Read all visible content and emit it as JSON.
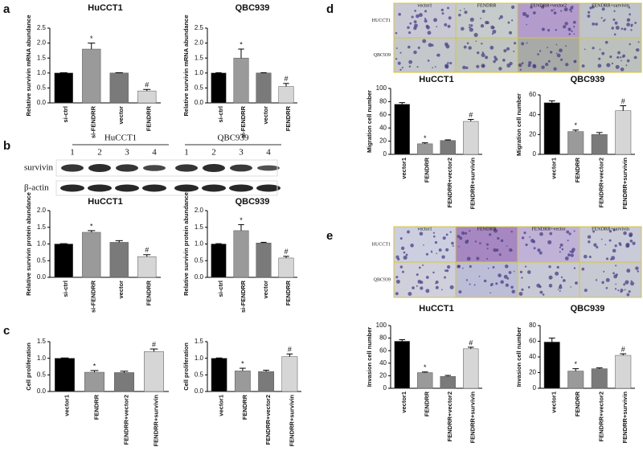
{
  "panel_labels": [
    "a",
    "b",
    "c",
    "d",
    "e"
  ],
  "blot": {
    "groups": [
      "HuCCT1",
      "QBC939"
    ],
    "lanes": [
      "1",
      "2",
      "3",
      "4",
      "1",
      "2",
      "3",
      "4"
    ],
    "rows": [
      "survivin",
      "β-actin"
    ]
  },
  "micrographs_d": {
    "columns": [
      "vector1",
      "FENDRR",
      "FENDRR+vector2",
      "FENDRR+survivin"
    ],
    "rows": [
      "HUCCT1",
      "QBC939"
    ]
  },
  "micrographs_e": {
    "columns": [
      "vector1",
      "FENDRR",
      "FENDRR+vector",
      "FENDRR+survivin"
    ],
    "rows": [
      "HUCCT1",
      "QBC939"
    ]
  },
  "chart_data": [
    {
      "type": "bar",
      "title": "HuCCT1",
      "ylabel": "Relative survivin mRNA abundance",
      "categories": [
        "si-ctrl",
        "si-FENDRR",
        "vector",
        "FENDRR"
      ],
      "values": [
        1.0,
        1.8,
        1.0,
        0.4
      ],
      "errors": [
        0.01,
        0.2,
        0.01,
        0.05
      ],
      "markers": [
        null,
        "*",
        null,
        "#"
      ],
      "colors": [
        "#000000",
        "#9a9a9a",
        "#7a7a7a",
        "#d6d6d6"
      ],
      "ylim": [
        0,
        2.5
      ],
      "yticks": [
        {
          "value": 0,
          "label": "0.0"
        },
        {
          "value": 0.5,
          "label": "0.5"
        },
        {
          "value": 1,
          "label": "1.0"
        },
        {
          "value": 1.5,
          "label": "1.5"
        },
        {
          "value": 2,
          "label": "2.0"
        },
        {
          "value": 2.5,
          "label": "2.5"
        }
      ]
    },
    {
      "type": "bar",
      "title": "QBC939",
      "ylabel": "Relative survivin mRNA abundance",
      "categories": [
        "si-ctrl",
        "si-FENDRR",
        "vector",
        "FENDRR"
      ],
      "values": [
        1.0,
        1.5,
        1.0,
        0.55
      ],
      "errors": [
        0.01,
        0.3,
        0.01,
        0.1
      ],
      "markers": [
        null,
        "*",
        null,
        "#"
      ],
      "colors": [
        "#000000",
        "#9a9a9a",
        "#7a7a7a",
        "#d6d6d6"
      ],
      "ylim": [
        0,
        2.5
      ],
      "yticks": [
        {
          "value": 0,
          "label": "0.0"
        },
        {
          "value": 0.5,
          "label": "0.5"
        },
        {
          "value": 1,
          "label": "1.0"
        },
        {
          "value": 1.5,
          "label": "1.5"
        },
        {
          "value": 2,
          "label": "2.0"
        },
        {
          "value": 2.5,
          "label": "2.5"
        }
      ]
    },
    {
      "type": "bar",
      "title": "HuCCT1",
      "ylabel": "Relative survivin protein abundance",
      "categories": [
        "si-ctrl",
        "si-FENDRR",
        "vector",
        "FENDRR"
      ],
      "values": [
        1.0,
        1.35,
        1.05,
        0.62
      ],
      "errors": [
        0.01,
        0.05,
        0.05,
        0.06
      ],
      "markers": [
        null,
        "*",
        null,
        "#"
      ],
      "colors": [
        "#000000",
        "#9a9a9a",
        "#7a7a7a",
        "#d6d6d6"
      ],
      "ylim": [
        0,
        2
      ],
      "yticks": [
        {
          "value": 0,
          "label": "0.0"
        },
        {
          "value": 0.5,
          "label": "0.5"
        },
        {
          "value": 1,
          "label": "1.0"
        },
        {
          "value": 1.5,
          "label": "1.5"
        },
        {
          "value": 2,
          "label": "2.0"
        }
      ]
    },
    {
      "type": "bar",
      "title": "QBC939",
      "ylabel": "Relative survivin protein abundance",
      "categories": [
        "si-ctrl",
        "si-FENDRR",
        "vector",
        "FENDRR"
      ],
      "values": [
        1.0,
        1.4,
        1.03,
        0.58
      ],
      "errors": [
        0.01,
        0.18,
        0.02,
        0.05
      ],
      "markers": [
        null,
        "*",
        null,
        "#"
      ],
      "colors": [
        "#000000",
        "#9a9a9a",
        "#7a7a7a",
        "#d6d6d6"
      ],
      "ylim": [
        0,
        2
      ],
      "yticks": [
        {
          "value": 0,
          "label": "0.0"
        },
        {
          "value": 0.5,
          "label": "0.5"
        },
        {
          "value": 1,
          "label": "1.0"
        },
        {
          "value": 1.5,
          "label": "1.5"
        },
        {
          "value": 2,
          "label": "2.0"
        }
      ]
    },
    {
      "type": "bar",
      "ylabel": "Cell proliferation",
      "categories": [
        "vector1",
        "FENDRR",
        "FENDRR+vector2",
        "FENDRR+survivin"
      ],
      "values": [
        1.0,
        0.58,
        0.57,
        1.2
      ],
      "errors": [
        0.01,
        0.05,
        0.04,
        0.08
      ],
      "markers": [
        null,
        "*",
        null,
        "#"
      ],
      "colors": [
        "#000000",
        "#9a9a9a",
        "#7a7a7a",
        "#d6d6d6"
      ],
      "ylim": [
        0,
        1.5
      ],
      "yticks": [
        {
          "value": 0,
          "label": "0.0"
        },
        {
          "value": 0.5,
          "label": "0.5"
        },
        {
          "value": 1,
          "label": "1.0"
        },
        {
          "value": 1.5,
          "label": "1.5"
        }
      ]
    },
    {
      "type": "bar",
      "ylabel": "Cell proliferation",
      "categories": [
        "vector1",
        "FENDRR",
        "FENDRR+vector2",
        "FENDRR+survivin"
      ],
      "values": [
        1.0,
        0.62,
        0.6,
        1.05
      ],
      "errors": [
        0.01,
        0.08,
        0.04,
        0.08
      ],
      "markers": [
        null,
        "*",
        null,
        "#"
      ],
      "colors": [
        "#000000",
        "#9a9a9a",
        "#7a7a7a",
        "#d6d6d6"
      ],
      "ylim": [
        0,
        1.5
      ],
      "yticks": [
        {
          "value": 0,
          "label": "0.0"
        },
        {
          "value": 0.5,
          "label": "0.5"
        },
        {
          "value": 1,
          "label": "1.0"
        },
        {
          "value": 1.5,
          "label": "1.5"
        }
      ]
    },
    {
      "type": "bar",
      "title": "HuCCT1",
      "ylabel": "Migration cell number",
      "categories": [
        "vector1",
        "FENDRR",
        "FENDRR+vector2",
        "FENDRR+survivin"
      ],
      "values": [
        76,
        16,
        21,
        50
      ],
      "errors": [
        2.5,
        1.5,
        1,
        3
      ],
      "markers": [
        null,
        "*",
        null,
        "#"
      ],
      "colors": [
        "#000000",
        "#9a9a9a",
        "#7a7a7a",
        "#d6d6d6"
      ],
      "ylim": [
        0,
        100
      ],
      "yticks": [
        0,
        20,
        40,
        60,
        80,
        100
      ]
    },
    {
      "type": "bar",
      "title": "QBC939",
      "ylabel": "Migration cell number",
      "categories": [
        "vector1",
        "FENDRR",
        "FENDRR+vector2",
        "FENDRR+survivin"
      ],
      "values": [
        52,
        23,
        20,
        44
      ],
      "errors": [
        2,
        1.5,
        2,
        5
      ],
      "markers": [
        null,
        "*",
        null,
        "#"
      ],
      "colors": [
        "#000000",
        "#9a9a9a",
        "#7a7a7a",
        "#d6d6d6"
      ],
      "ylim": [
        0,
        60
      ],
      "yticks": [
        0,
        20,
        40,
        60
      ]
    },
    {
      "type": "bar",
      "title": "HuCCT1",
      "ylabel": "Invasion cell number",
      "categories": [
        "vector1",
        "FENDRR",
        "FENDRR+vector2",
        "FENDRR+survivin"
      ],
      "values": [
        75,
        25,
        19,
        63
      ],
      "errors": [
        2.5,
        1,
        1.5,
        2.5
      ],
      "markers": [
        null,
        "*",
        null,
        "#"
      ],
      "colors": [
        "#000000",
        "#9a9a9a",
        "#7a7a7a",
        "#d6d6d6"
      ],
      "ylim": [
        0,
        100
      ],
      "yticks": [
        0,
        20,
        40,
        60,
        80,
        100
      ]
    },
    {
      "type": "bar",
      "title": "QBC939",
      "ylabel": "Invasion cell number",
      "categories": [
        "vector1",
        "FENDRR",
        "FENDRR+vector2",
        "FENDRR+survivin"
      ],
      "values": [
        59,
        22,
        25,
        42
      ],
      "errors": [
        5,
        3,
        1,
        2
      ],
      "markers": [
        null,
        "*",
        null,
        "#"
      ],
      "colors": [
        "#000000",
        "#9a9a9a",
        "#7a7a7a",
        "#d6d6d6"
      ],
      "ylim": [
        0,
        80
      ],
      "yticks": [
        0,
        20,
        40,
        60,
        80
      ]
    }
  ]
}
